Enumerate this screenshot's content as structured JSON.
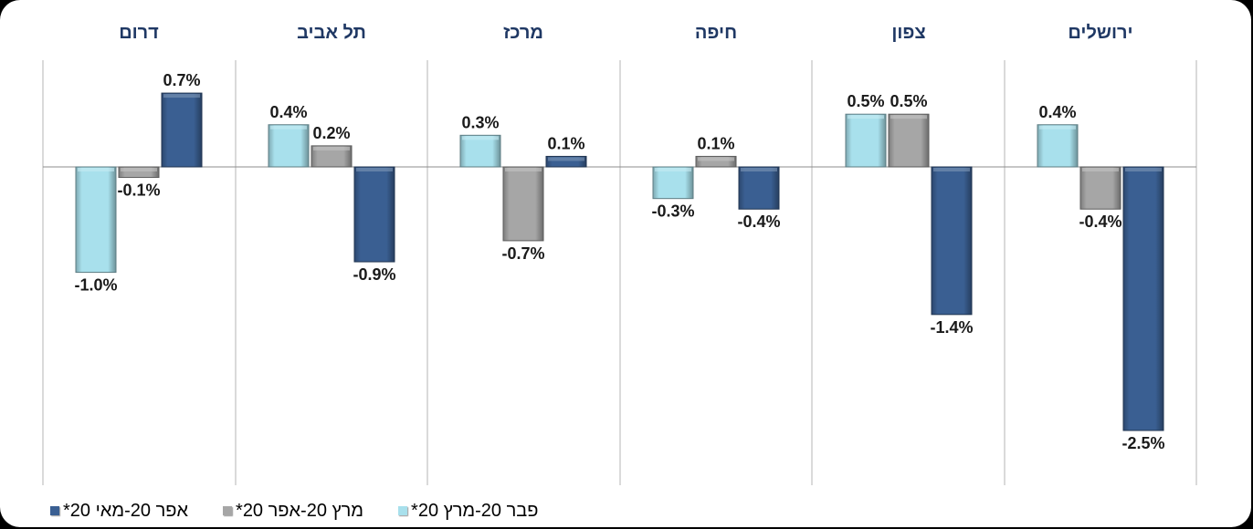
{
  "colors": {
    "feb_mar": "#a8e0ec",
    "mar_apr": "#a6a6a6",
    "apr_may": "#3a5f92",
    "title": "#1f3864"
  },
  "legend": [
    {
      "label": "אפר 20-מאי 20*",
      "series": "apr_may"
    },
    {
      "label": "מרץ 20-אפר 20*",
      "series": "mar_apr"
    },
    {
      "label": "פבר 20-מרץ 20*",
      "series": "feb_mar"
    }
  ],
  "chart_data": {
    "type": "bar",
    "categories": [
      "ירושלים",
      "צפון",
      "חיפה",
      "מרכז",
      "תל אביב",
      "דרום"
    ],
    "series": [
      {
        "name": "פבר 20-מרץ 20*",
        "key": "feb_mar",
        "values": [
          0.4,
          0.5,
          -0.3,
          0.3,
          0.4,
          -1.0
        ]
      },
      {
        "name": "מרץ 20-אפר 20*",
        "key": "mar_apr",
        "values": [
          -0.4,
          0.5,
          0.1,
          -0.7,
          0.2,
          -0.1
        ]
      },
      {
        "name": "אפר 20-מאי 20*",
        "key": "apr_may",
        "values": [
          -2.5,
          -1.4,
          -0.4,
          0.1,
          -0.9,
          0.7
        ]
      }
    ],
    "labels": [
      [
        "0.4%",
        "0.5%",
        "-0.3%",
        "0.3%",
        "0.4%",
        "-1.0%"
      ],
      [
        "-0.4%",
        "0.5%",
        "0.1%",
        "-0.7%",
        "0.2%",
        "-0.1%"
      ],
      [
        "-2.5%",
        "-1.4%",
        "-0.4%",
        "0.1%",
        "-0.9%",
        "0.7%"
      ]
    ],
    "unit": "%",
    "layout": "small multiples, right-to-left panels",
    "grid": false,
    "legend_position": "bottom"
  }
}
